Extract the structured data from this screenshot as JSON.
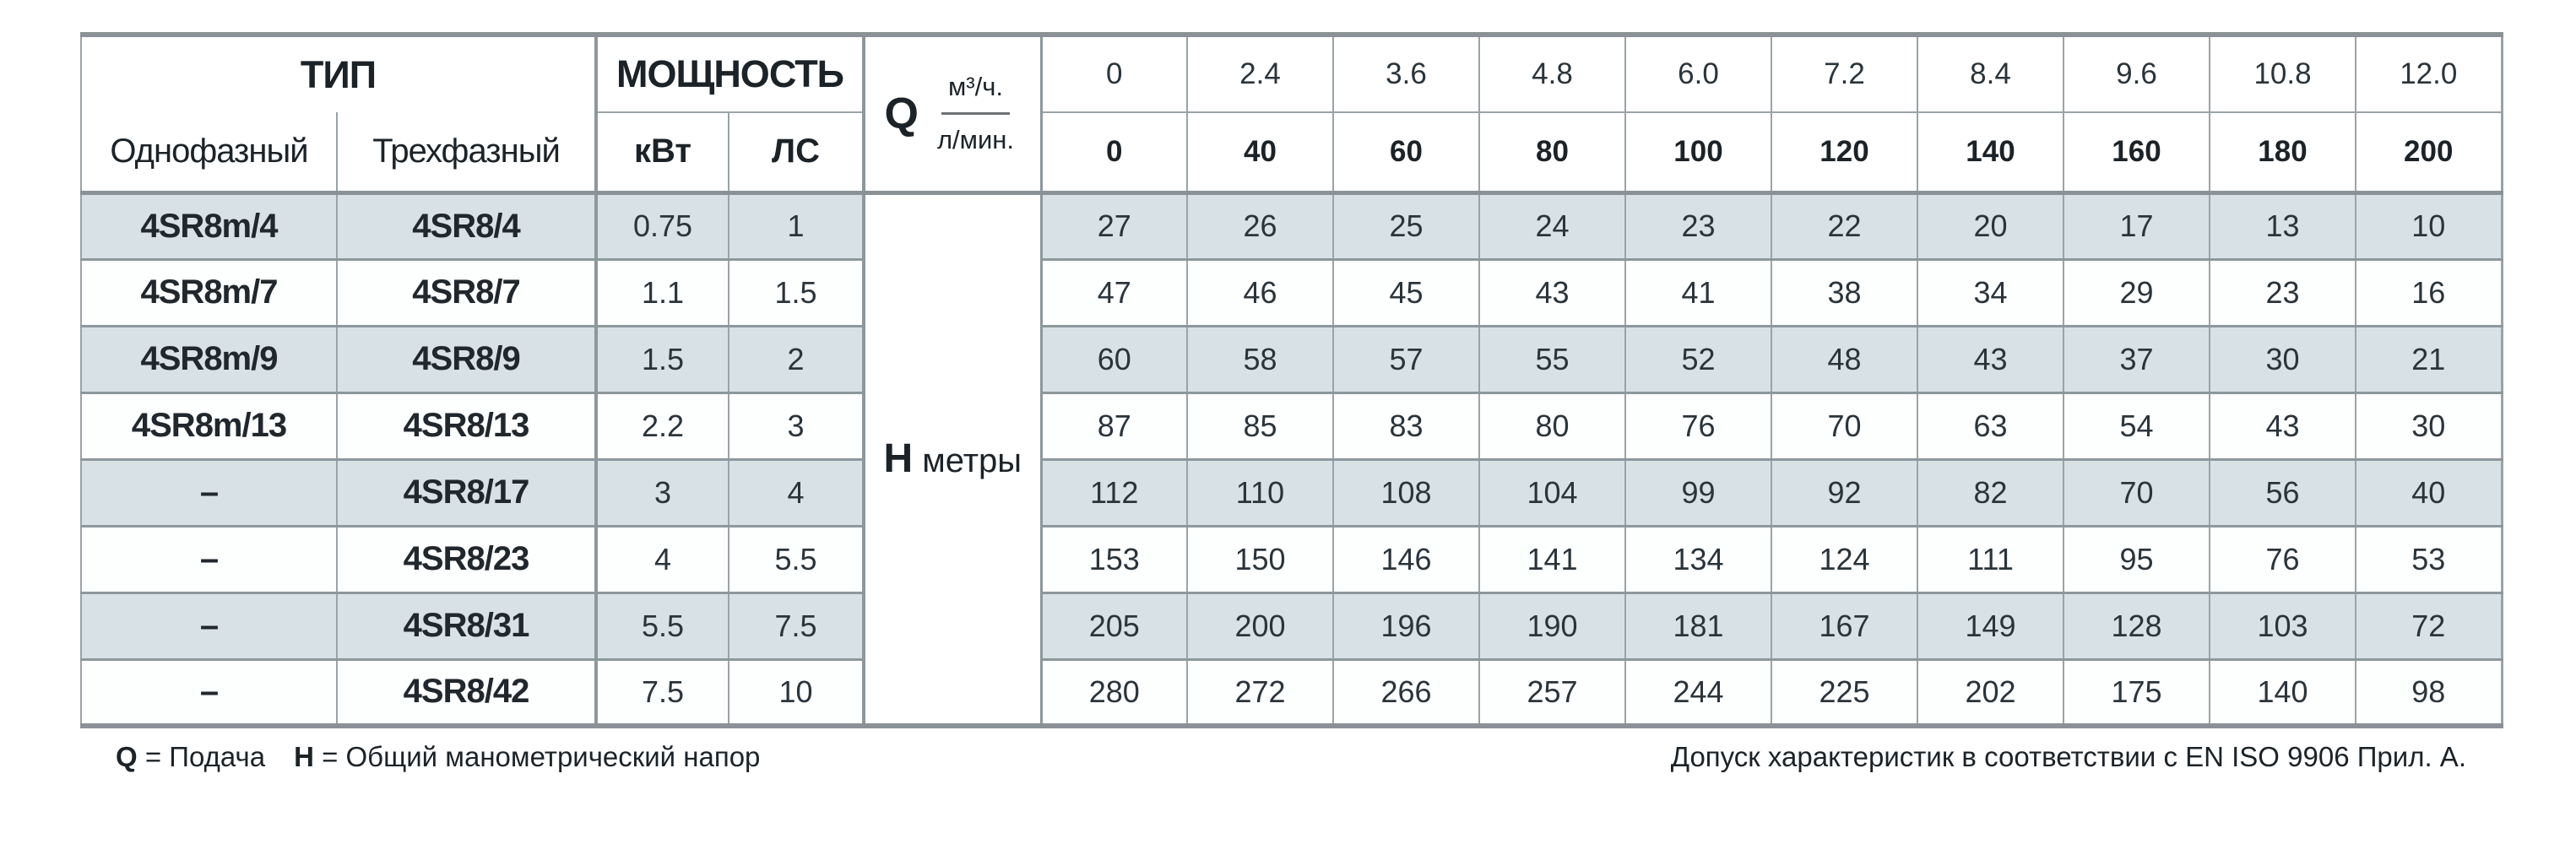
{
  "header": {
    "type_label": "ТИП",
    "power_label": "МОЩНОСТЬ",
    "single_phase_label": "Однофазный",
    "three_phase_label": "Трехфазный",
    "kw_label": "кВт",
    "hp_label": "ЛС",
    "q_label": "Q",
    "q_unit_top": "м³/ч.",
    "q_unit_bottom": "л/мин.",
    "flow_m3h": [
      "0",
      "2.4",
      "3.6",
      "4.8",
      "6.0",
      "7.2",
      "8.4",
      "9.6",
      "10.8",
      "12.0"
    ],
    "flow_lmin": [
      "0",
      "40",
      "60",
      "80",
      "100",
      "120",
      "140",
      "160",
      "180",
      "200"
    ]
  },
  "h_label": {
    "letter": "H",
    "unit": "метры"
  },
  "rows": [
    {
      "single": "4SR8m/4",
      "three": "4SR8/4",
      "kw": "0.75",
      "hp": "1",
      "head": [
        27,
        26,
        25,
        24,
        23,
        22,
        20,
        17,
        13,
        10
      ]
    },
    {
      "single": "4SR8m/7",
      "three": "4SR8/7",
      "kw": "1.1",
      "hp": "1.5",
      "head": [
        47,
        46,
        45,
        43,
        41,
        38,
        34,
        29,
        23,
        16
      ]
    },
    {
      "single": "4SR8m/9",
      "three": "4SR8/9",
      "kw": "1.5",
      "hp": "2",
      "head": [
        60,
        58,
        57,
        55,
        52,
        48,
        43,
        37,
        30,
        21
      ]
    },
    {
      "single": "4SR8m/13",
      "three": "4SR8/13",
      "kw": "2.2",
      "hp": "3",
      "head": [
        87,
        85,
        83,
        80,
        76,
        70,
        63,
        54,
        43,
        30
      ]
    },
    {
      "single": "–",
      "three": "4SR8/17",
      "kw": "3",
      "hp": "4",
      "head": [
        112,
        110,
        108,
        104,
        99,
        92,
        82,
        70,
        56,
        40
      ]
    },
    {
      "single": "–",
      "three": "4SR8/23",
      "kw": "4",
      "hp": "5.5",
      "head": [
        153,
        150,
        146,
        141,
        134,
        124,
        111,
        95,
        76,
        53
      ]
    },
    {
      "single": "–",
      "three": "4SR8/31",
      "kw": "5.5",
      "hp": "7.5",
      "head": [
        205,
        200,
        196,
        190,
        181,
        167,
        149,
        128,
        103,
        72
      ]
    },
    {
      "single": "–",
      "three": "4SR8/42",
      "kw": "7.5",
      "hp": "10",
      "head": [
        280,
        272,
        266,
        257,
        244,
        225,
        202,
        175,
        140,
        98
      ]
    }
  ],
  "footer": {
    "q_def_label": "Q",
    "q_def_text": "= Подача",
    "h_def_label": "H",
    "h_def_text": "= Общий манометрический напор",
    "tolerance_note": "Допуск характеристик в соответствии с EN ISO 9906 Прил. А."
  },
  "colors": {
    "band_row": "#d8e2e6",
    "border_thin": "#9aa3a8",
    "border_thick": "#8a9297",
    "text": "#1c2328",
    "value_text": "#2a343b"
  }
}
